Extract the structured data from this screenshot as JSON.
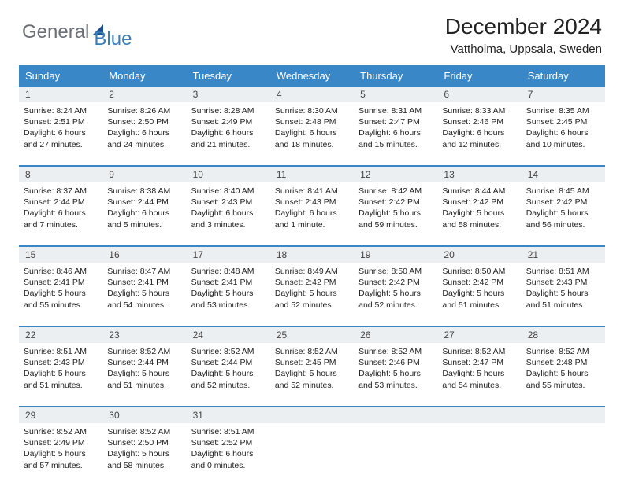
{
  "logo": {
    "part1": "General",
    "part2": "Blue"
  },
  "title": "December 2024",
  "location": "Vattholma, Uppsala, Sweden",
  "colors": {
    "header_bg": "#3a87c7",
    "header_text": "#ffffff",
    "daynum_bg": "#eceff2",
    "accent_line": "#3a87c7",
    "logo_gray": "#6b6f76",
    "logo_blue": "#3a7fb8",
    "logo_triangle": "#1f4e8c"
  },
  "weekdays": [
    "Sunday",
    "Monday",
    "Tuesday",
    "Wednesday",
    "Thursday",
    "Friday",
    "Saturday"
  ],
  "weeks": [
    {
      "nums": [
        "1",
        "2",
        "3",
        "4",
        "5",
        "6",
        "7"
      ],
      "cells": [
        {
          "sunrise": "Sunrise: 8:24 AM",
          "sunset": "Sunset: 2:51 PM",
          "daylight": "Daylight: 6 hours and 27 minutes."
        },
        {
          "sunrise": "Sunrise: 8:26 AM",
          "sunset": "Sunset: 2:50 PM",
          "daylight": "Daylight: 6 hours and 24 minutes."
        },
        {
          "sunrise": "Sunrise: 8:28 AM",
          "sunset": "Sunset: 2:49 PM",
          "daylight": "Daylight: 6 hours and 21 minutes."
        },
        {
          "sunrise": "Sunrise: 8:30 AM",
          "sunset": "Sunset: 2:48 PM",
          "daylight": "Daylight: 6 hours and 18 minutes."
        },
        {
          "sunrise": "Sunrise: 8:31 AM",
          "sunset": "Sunset: 2:47 PM",
          "daylight": "Daylight: 6 hours and 15 minutes."
        },
        {
          "sunrise": "Sunrise: 8:33 AM",
          "sunset": "Sunset: 2:46 PM",
          "daylight": "Daylight: 6 hours and 12 minutes."
        },
        {
          "sunrise": "Sunrise: 8:35 AM",
          "sunset": "Sunset: 2:45 PM",
          "daylight": "Daylight: 6 hours and 10 minutes."
        }
      ]
    },
    {
      "nums": [
        "8",
        "9",
        "10",
        "11",
        "12",
        "13",
        "14"
      ],
      "cells": [
        {
          "sunrise": "Sunrise: 8:37 AM",
          "sunset": "Sunset: 2:44 PM",
          "daylight": "Daylight: 6 hours and 7 minutes."
        },
        {
          "sunrise": "Sunrise: 8:38 AM",
          "sunset": "Sunset: 2:44 PM",
          "daylight": "Daylight: 6 hours and 5 minutes."
        },
        {
          "sunrise": "Sunrise: 8:40 AM",
          "sunset": "Sunset: 2:43 PM",
          "daylight": "Daylight: 6 hours and 3 minutes."
        },
        {
          "sunrise": "Sunrise: 8:41 AM",
          "sunset": "Sunset: 2:43 PM",
          "daylight": "Daylight: 6 hours and 1 minute."
        },
        {
          "sunrise": "Sunrise: 8:42 AM",
          "sunset": "Sunset: 2:42 PM",
          "daylight": "Daylight: 5 hours and 59 minutes."
        },
        {
          "sunrise": "Sunrise: 8:44 AM",
          "sunset": "Sunset: 2:42 PM",
          "daylight": "Daylight: 5 hours and 58 minutes."
        },
        {
          "sunrise": "Sunrise: 8:45 AM",
          "sunset": "Sunset: 2:42 PM",
          "daylight": "Daylight: 5 hours and 56 minutes."
        }
      ]
    },
    {
      "nums": [
        "15",
        "16",
        "17",
        "18",
        "19",
        "20",
        "21"
      ],
      "cells": [
        {
          "sunrise": "Sunrise: 8:46 AM",
          "sunset": "Sunset: 2:41 PM",
          "daylight": "Daylight: 5 hours and 55 minutes."
        },
        {
          "sunrise": "Sunrise: 8:47 AM",
          "sunset": "Sunset: 2:41 PM",
          "daylight": "Daylight: 5 hours and 54 minutes."
        },
        {
          "sunrise": "Sunrise: 8:48 AM",
          "sunset": "Sunset: 2:41 PM",
          "daylight": "Daylight: 5 hours and 53 minutes."
        },
        {
          "sunrise": "Sunrise: 8:49 AM",
          "sunset": "Sunset: 2:42 PM",
          "daylight": "Daylight: 5 hours and 52 minutes."
        },
        {
          "sunrise": "Sunrise: 8:50 AM",
          "sunset": "Sunset: 2:42 PM",
          "daylight": "Daylight: 5 hours and 52 minutes."
        },
        {
          "sunrise": "Sunrise: 8:50 AM",
          "sunset": "Sunset: 2:42 PM",
          "daylight": "Daylight: 5 hours and 51 minutes."
        },
        {
          "sunrise": "Sunrise: 8:51 AM",
          "sunset": "Sunset: 2:43 PM",
          "daylight": "Daylight: 5 hours and 51 minutes."
        }
      ]
    },
    {
      "nums": [
        "22",
        "23",
        "24",
        "25",
        "26",
        "27",
        "28"
      ],
      "cells": [
        {
          "sunrise": "Sunrise: 8:51 AM",
          "sunset": "Sunset: 2:43 PM",
          "daylight": "Daylight: 5 hours and 51 minutes."
        },
        {
          "sunrise": "Sunrise: 8:52 AM",
          "sunset": "Sunset: 2:44 PM",
          "daylight": "Daylight: 5 hours and 51 minutes."
        },
        {
          "sunrise": "Sunrise: 8:52 AM",
          "sunset": "Sunset: 2:44 PM",
          "daylight": "Daylight: 5 hours and 52 minutes."
        },
        {
          "sunrise": "Sunrise: 8:52 AM",
          "sunset": "Sunset: 2:45 PM",
          "daylight": "Daylight: 5 hours and 52 minutes."
        },
        {
          "sunrise": "Sunrise: 8:52 AM",
          "sunset": "Sunset: 2:46 PM",
          "daylight": "Daylight: 5 hours and 53 minutes."
        },
        {
          "sunrise": "Sunrise: 8:52 AM",
          "sunset": "Sunset: 2:47 PM",
          "daylight": "Daylight: 5 hours and 54 minutes."
        },
        {
          "sunrise": "Sunrise: 8:52 AM",
          "sunset": "Sunset: 2:48 PM",
          "daylight": "Daylight: 5 hours and 55 minutes."
        }
      ]
    },
    {
      "nums": [
        "29",
        "30",
        "31",
        "",
        "",
        "",
        ""
      ],
      "cells": [
        {
          "sunrise": "Sunrise: 8:52 AM",
          "sunset": "Sunset: 2:49 PM",
          "daylight": "Daylight: 5 hours and 57 minutes."
        },
        {
          "sunrise": "Sunrise: 8:52 AM",
          "sunset": "Sunset: 2:50 PM",
          "daylight": "Daylight: 5 hours and 58 minutes."
        },
        {
          "sunrise": "Sunrise: 8:51 AM",
          "sunset": "Sunset: 2:52 PM",
          "daylight": "Daylight: 6 hours and 0 minutes."
        },
        {
          "empty": true
        },
        {
          "empty": true
        },
        {
          "empty": true
        },
        {
          "empty": true
        }
      ]
    }
  ]
}
